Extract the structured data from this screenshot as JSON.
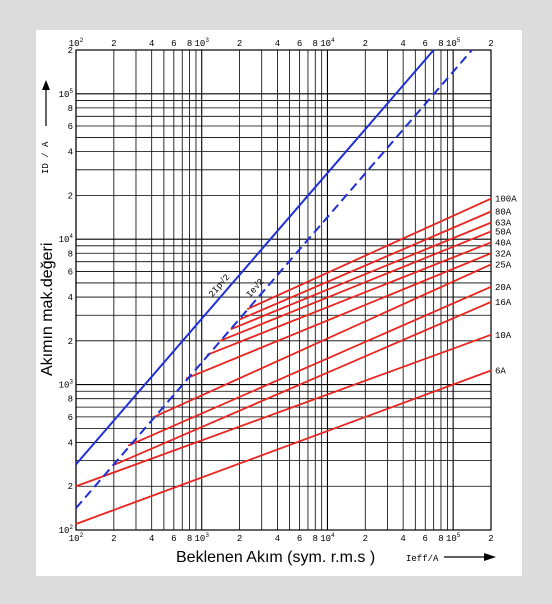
{
  "chart_data": {
    "type": "line",
    "xscale": "log",
    "yscale": "log",
    "xlim": [
      100,
      200000
    ],
    "ylim": [
      100,
      200000
    ],
    "grid": true,
    "xlabel": "Beklenen Akım  (sym. r.m.s )",
    "xlabel_unit": "Ieff/A",
    "ylabel": "Akımın mak.değeri",
    "ylabel_unit": "ID / A",
    "x_tick_labels": [
      {
        "v": 100,
        "m": "10",
        "e": "2"
      },
      {
        "v": 200,
        "m": "2",
        "e": ""
      },
      {
        "v": 400,
        "m": "4",
        "e": ""
      },
      {
        "v": 600,
        "m": "6",
        "e": ""
      },
      {
        "v": 800,
        "m": "8",
        "e": ""
      },
      {
        "v": 1000,
        "m": "10",
        "e": "3"
      },
      {
        "v": 2000,
        "m": "2",
        "e": ""
      },
      {
        "v": 4000,
        "m": "4",
        "e": ""
      },
      {
        "v": 6000,
        "m": "6",
        "e": ""
      },
      {
        "v": 8000,
        "m": "8",
        "e": ""
      },
      {
        "v": 10000,
        "m": "10",
        "e": "4"
      },
      {
        "v": 20000,
        "m": "2",
        "e": ""
      },
      {
        "v": 40000,
        "m": "4",
        "e": ""
      },
      {
        "v": 60000,
        "m": "6",
        "e": ""
      },
      {
        "v": 80000,
        "m": "8",
        "e": ""
      },
      {
        "v": 100000,
        "m": "10",
        "e": "5"
      },
      {
        "v": 200000,
        "m": "2",
        "e": ""
      }
    ],
    "y_tick_labels": [
      {
        "v": 100,
        "m": "10",
        "e": "2"
      },
      {
        "v": 200,
        "m": "2",
        "e": ""
      },
      {
        "v": 400,
        "m": "4",
        "e": ""
      },
      {
        "v": 600,
        "m": "6",
        "e": ""
      },
      {
        "v": 800,
        "m": "8",
        "e": ""
      },
      {
        "v": 1000,
        "m": "10",
        "e": "3"
      },
      {
        "v": 2000,
        "m": "2",
        "e": ""
      },
      {
        "v": 4000,
        "m": "4",
        "e": ""
      },
      {
        "v": 6000,
        "m": "6",
        "e": ""
      },
      {
        "v": 8000,
        "m": "8",
        "e": ""
      },
      {
        "v": 10000,
        "m": "10",
        "e": "4"
      },
      {
        "v": 20000,
        "m": "2",
        "e": ""
      },
      {
        "v": 40000,
        "m": "4",
        "e": ""
      },
      {
        "v": 60000,
        "m": "6",
        "e": ""
      },
      {
        "v": 80000,
        "m": "8",
        "e": ""
      },
      {
        "v": 100000,
        "m": "10",
        "e": "5"
      },
      {
        "v": 200000,
        "m": "2",
        "e": ""
      }
    ],
    "reference_lines": [
      {
        "name": "2Ip√2",
        "style": "solid",
        "color": "#1f2fd6",
        "points": [
          [
            100,
            282.8
          ],
          [
            70000,
            200000
          ]
        ]
      },
      {
        "name": "Ie√2",
        "style": "dashed",
        "color": "#1f2fd6",
        "points": [
          [
            100,
            141.4
          ],
          [
            141000,
            200000
          ]
        ]
      }
    ],
    "series": [
      {
        "name": "100A",
        "color": "#e8251f",
        "points": [
          [
            2300,
            3300
          ],
          [
            200000,
            19000
          ]
        ]
      },
      {
        "name": "80A",
        "color": "#e8251f",
        "points": [
          [
            2000,
            2800
          ],
          [
            200000,
            15500
          ]
        ]
      },
      {
        "name": "63A",
        "color": "#e8251f",
        "points": [
          [
            1700,
            2400
          ],
          [
            200000,
            13000
          ]
        ]
      },
      {
        "name": "50A",
        "color": "#e8251f",
        "points": [
          [
            1400,
            2000
          ],
          [
            200000,
            11300
          ]
        ]
      },
      {
        "name": "40A",
        "color": "#e8251f",
        "points": [
          [
            1100,
            1600
          ],
          [
            200000,
            9500
          ]
        ]
      },
      {
        "name": "32A",
        "color": "#e8251f",
        "points": [
          [
            750,
            1100
          ],
          [
            200000,
            8000
          ]
        ]
      },
      {
        "name": "25A",
        "color": "#e8251f",
        "points": [
          [
            420,
            600
          ],
          [
            200000,
            6700
          ]
        ]
      },
      {
        "name": "20A",
        "color": "#e8251f",
        "points": [
          [
            260,
            380
          ],
          [
            200000,
            4700
          ]
        ]
      },
      {
        "name": "16A",
        "color": "#e8251f",
        "points": [
          [
            200,
            280
          ],
          [
            200000,
            3700
          ]
        ]
      },
      {
        "name": "10A",
        "color": "#e8251f",
        "points": [
          [
            100,
            200
          ],
          [
            200000,
            2200
          ]
        ]
      },
      {
        "name": "6A",
        "color": "#e8251f",
        "points": [
          [
            100,
            110
          ],
          [
            200000,
            1250
          ]
        ]
      }
    ]
  }
}
